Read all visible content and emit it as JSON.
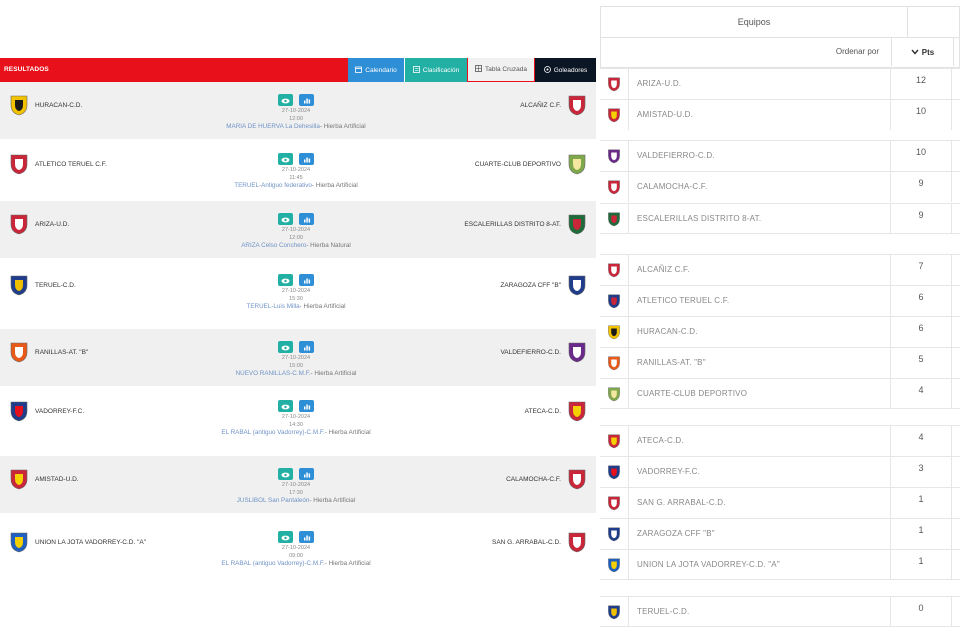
{
  "tabs": {
    "results": "RESULTADOS",
    "calendar": "Calendario",
    "standings": "Clasificación",
    "crosstable": "Tabla Cruzada",
    "scorers": "Goleadores"
  },
  "matches": [
    {
      "home": "HURACAN-C.D.",
      "away": "ALCAÑIZ C.F.",
      "date": "27-10-2024",
      "time": "12:00",
      "venue": "MARIA DE HUERVA La Dehesilla",
      "surface": "- Hierba Artificial"
    },
    {
      "home": "ATLETICO TERUEL C.F.",
      "away": "CUARTE-CLUB DEPORTIVO",
      "date": "27-10-2024",
      "time": "11:45",
      "venue": "TERUEL-Antiguo federativo",
      "surface": "- Hierba Artificial"
    },
    {
      "home": "ARIZA-U.D.",
      "away": "ESCALERILLAS DISTRITO 8-AT.",
      "date": "27-10-2024",
      "time": "12:00",
      "venue": "ARIZA Celso Conchero",
      "surface": "- Hierba Natural"
    },
    {
      "home": "TERUEL-C.D.",
      "away": "ZARAGOZA CFF \"B\"",
      "date": "27-10-2024",
      "time": "15:30",
      "venue": "TERUEL-Luis Milla",
      "surface": "- Hierba Artificial"
    },
    {
      "home": "RANILLAS-AT. \"B\"",
      "away": "VALDEFIERRO-C.D.",
      "date": "27-10-2024",
      "time": "15:00",
      "venue": "NUEVO RANILLAS-C.M.F.",
      "surface": "- Hierba Artificial"
    },
    {
      "home": "VADORREY-F.C.",
      "away": "ATECA-C.D.",
      "date": "27-10-2024",
      "time": "14:30",
      "venue": "EL RABAL (antiguo Vadorrey)-C.M.F.",
      "surface": "- Hierba Artificial"
    },
    {
      "home": "AMISTAD-U.D.",
      "away": "CALAMOCHA-C.F.",
      "date": "27-10-2024",
      "time": "17:30",
      "venue": "JUSLIBOL San Pantaleón",
      "surface": "- Hierba Artificial"
    },
    {
      "home": "UNION LA JOTA VADORREY-C.D. \"A\"",
      "away": "SAN G. ARRABAL-C.D.",
      "date": "27-10-2024",
      "time": "09:00",
      "venue": "EL RABAL (antiguo Vadorrey)-C.M.F.",
      "surface": "- Hierba Artificial"
    }
  ],
  "table": {
    "header": "Equipos",
    "sort_label": "Ordenar por",
    "pts_label": "Pts",
    "rows": [
      {
        "team": "ARIZA-U.D.",
        "pts": "12"
      },
      {
        "team": "AMISTAD-U.D.",
        "pts": "10"
      },
      {
        "team": "VALDEFIERRO-C.D.",
        "pts": "10"
      },
      {
        "team": "CALAMOCHA-C.F.",
        "pts": "9"
      },
      {
        "team": "ESCALERILLAS DISTRITO 8-AT.",
        "pts": "9"
      },
      {
        "team": "ALCAÑIZ C.F.",
        "pts": "7"
      },
      {
        "team": "ATLETICO TERUEL C.F.",
        "pts": "6"
      },
      {
        "team": "HURACAN-C.D.",
        "pts": "6"
      },
      {
        "team": "RANILLAS-AT. \"B\"",
        "pts": "5"
      },
      {
        "team": "CUARTE-CLUB DEPORTIVO",
        "pts": "4"
      },
      {
        "team": "ATECA-C.D.",
        "pts": "4"
      },
      {
        "team": "VADORREY-F.C.",
        "pts": "3"
      },
      {
        "team": "SAN G. ARRABAL-C.D.",
        "pts": "1"
      },
      {
        "team": "ZARAGOZA CFF \"B\"",
        "pts": "1"
      },
      {
        "team": "UNION LA JOTA VADORREY-C.D. \"A\"",
        "pts": "1"
      },
      {
        "team": "TERUEL-C.D.",
        "pts": "0"
      }
    ]
  },
  "colors": {
    "red": "#e8101a",
    "blue": "#2e8fd6",
    "teal": "#23b0a4",
    "navy": "#0b1624"
  }
}
